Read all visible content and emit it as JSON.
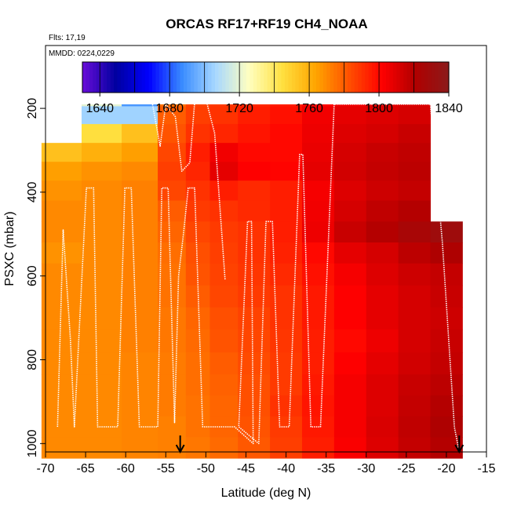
{
  "chart_data": {
    "type": "heatmap",
    "title": "ORCAS RF17+RF19 CH4_NOAA",
    "flights_label": "Flts: 17,19",
    "date_label": "MMDD: 0224,0229",
    "xlabel": "Latitude (deg N)",
    "ylabel": "PSXC (mbar)",
    "xlim": [
      -70,
      -15
    ],
    "ylim": [
      1020,
      50
    ],
    "x_ticks": [
      -70,
      -65,
      -60,
      -55,
      -50,
      -45,
      -40,
      -35,
      -30,
      -25,
      -20,
      -15
    ],
    "y_ticks": [
      200,
      400,
      600,
      800,
      1000
    ],
    "colorbar": {
      "min": 1630,
      "max": 1840,
      "ticks": [
        1640,
        1680,
        1720,
        1760,
        1800,
        1840
      ],
      "colors": [
        "#6a0dd9",
        "#0000a0",
        "#0000ff",
        "#3a8cff",
        "#a8d8ff",
        "#ffffc0",
        "#ffe040",
        "#ffa500",
        "#ff5000",
        "#ff0000",
        "#b00000",
        "#8b1a1a"
      ]
    },
    "pressure_levels": [
      175,
      215,
      260,
      305,
      350,
      395,
      445,
      495,
      545,
      595,
      650,
      700,
      755,
      810,
      860,
      910,
      960,
      1010
    ],
    "lat_bins": [
      -68,
      -63,
      -58,
      -54,
      -51,
      -48,
      -44,
      -40,
      -36,
      -32,
      -28,
      -24,
      -20
    ],
    "ch4_grid": [
      [
        null,
        1720,
        1690,
        1775,
        1785,
        1788,
        1792,
        1795,
        1800,
        1805,
        1808,
        1810,
        null
      ],
      [
        null,
        1705,
        1705,
        1780,
        1787,
        1790,
        1795,
        1798,
        1805,
        1808,
        1810,
        1812,
        null
      ],
      [
        null,
        1745,
        1755,
        1782,
        1790,
        1793,
        1797,
        1800,
        1806,
        1810,
        1812,
        1815,
        null
      ],
      [
        1755,
        1760,
        1765,
        1785,
        1795,
        1805,
        1800,
        1800,
        1807,
        1812,
        1815,
        1817,
        null
      ],
      [
        1765,
        1768,
        1770,
        1787,
        1793,
        1808,
        1802,
        1801,
        1808,
        1813,
        1816,
        1818,
        null
      ],
      [
        1768,
        1770,
        1772,
        1785,
        1790,
        1795,
        1792,
        1795,
        1804,
        1810,
        1814,
        1816,
        null
      ],
      [
        1770,
        1770,
        1772,
        1780,
        1788,
        1790,
        1792,
        1795,
        1805,
        1812,
        1817,
        1820,
        null
      ],
      [
        1770,
        1770,
        1772,
        1778,
        1785,
        1788,
        1790,
        1795,
        1806,
        1815,
        1820,
        1825,
        1830
      ],
      [
        1768,
        1770,
        1772,
        1776,
        1783,
        1787,
        1790,
        1794,
        1800,
        1808,
        1812,
        1818,
        1822
      ],
      [
        1770,
        1770,
        1772,
        1775,
        1782,
        1786,
        1789,
        1792,
        1798,
        1804,
        1810,
        1814,
        1816
      ],
      [
        1770,
        1770,
        1772,
        1775,
        1780,
        1785,
        1788,
        1790,
        1796,
        1802,
        1808,
        1812,
        1815
      ],
      [
        1770,
        1770,
        1772,
        1774,
        1778,
        1783,
        1786,
        1790,
        1796,
        1802,
        1808,
        1812,
        1814
      ],
      [
        1770,
        1770,
        1772,
        1774,
        1777,
        1782,
        1785,
        1789,
        1795,
        1800,
        1806,
        1812,
        1815
      ],
      [
        1770,
        1770,
        1771,
        1773,
        1776,
        1780,
        1784,
        1788,
        1795,
        1802,
        1808,
        1813,
        1816
      ],
      [
        1770,
        1770,
        1771,
        1773,
        1776,
        1779,
        1783,
        1788,
        1796,
        1804,
        1810,
        1815,
        1818
      ],
      [
        1770,
        1770,
        1771,
        1773,
        1775,
        1778,
        1783,
        1790,
        1797,
        1804,
        1810,
        1816,
        1820
      ],
      [
        1770,
        1770,
        1771,
        1772,
        1775,
        1778,
        1782,
        1788,
        1796,
        1804,
        1811,
        1817,
        1822
      ],
      [
        1770,
        1770,
        1771,
        1772,
        1774,
        1777,
        1781,
        1787,
        1795,
        1803,
        1810,
        1816,
        1820
      ]
    ],
    "flight_track": [
      [
        -68.5,
        960
      ],
      [
        -67.8,
        490
      ],
      [
        -66.9,
        750
      ],
      [
        -66.4,
        960
      ],
      [
        -64.9,
        390
      ],
      [
        -64.0,
        390
      ],
      [
        -63.5,
        960
      ],
      [
        -61.0,
        960
      ],
      [
        -60.1,
        390
      ],
      [
        -59.3,
        390
      ],
      [
        -58.3,
        960
      ],
      [
        -56.0,
        960
      ],
      [
        -55.5,
        390
      ],
      [
        -54.7,
        390
      ],
      [
        -53.9,
        950
      ],
      [
        -53.4,
        600
      ],
      [
        -52.8,
        500
      ],
      [
        -52.2,
        390
      ],
      [
        -51.4,
        390
      ],
      [
        -50.4,
        960
      ],
      [
        -46.4,
        960
      ],
      [
        -44.1,
        1000
      ],
      [
        -44.3,
        470
      ],
      [
        -44.8,
        470
      ],
      [
        -45.9,
        960
      ],
      [
        -43.4,
        1000
      ],
      [
        -42.5,
        470
      ],
      [
        -41.7,
        470
      ],
      [
        -40.8,
        960
      ],
      [
        -39.6,
        960
      ],
      [
        -38.3,
        310
      ],
      [
        -37.9,
        310
      ],
      [
        -36.9,
        960
      ],
      [
        -35.7,
        960
      ],
      [
        -34.0,
        190
      ],
      [
        -22.0,
        190
      ],
      [
        -20.5,
        520
      ],
      [
        -19.0,
        960
      ],
      [
        -18.5,
        1010
      ]
    ],
    "flight_track_upper": [
      [
        -65.5,
        175
      ],
      [
        -56.8,
        175
      ],
      [
        -55.7,
        290
      ],
      [
        -55.0,
        190
      ],
      [
        -53.8,
        220
      ],
      [
        -53.0,
        350
      ],
      [
        -52.0,
        330
      ],
      [
        -51.4,
        185
      ],
      [
        -49.9,
        185
      ],
      [
        -48.9,
        260
      ],
      [
        -47.6,
        610
      ]
    ],
    "markers": [
      {
        "label": "",
        "lat": -53.2,
        "type": "arrow-down"
      },
      {
        "label": "",
        "lat": -18.4,
        "type": "arrow-down"
      }
    ]
  }
}
